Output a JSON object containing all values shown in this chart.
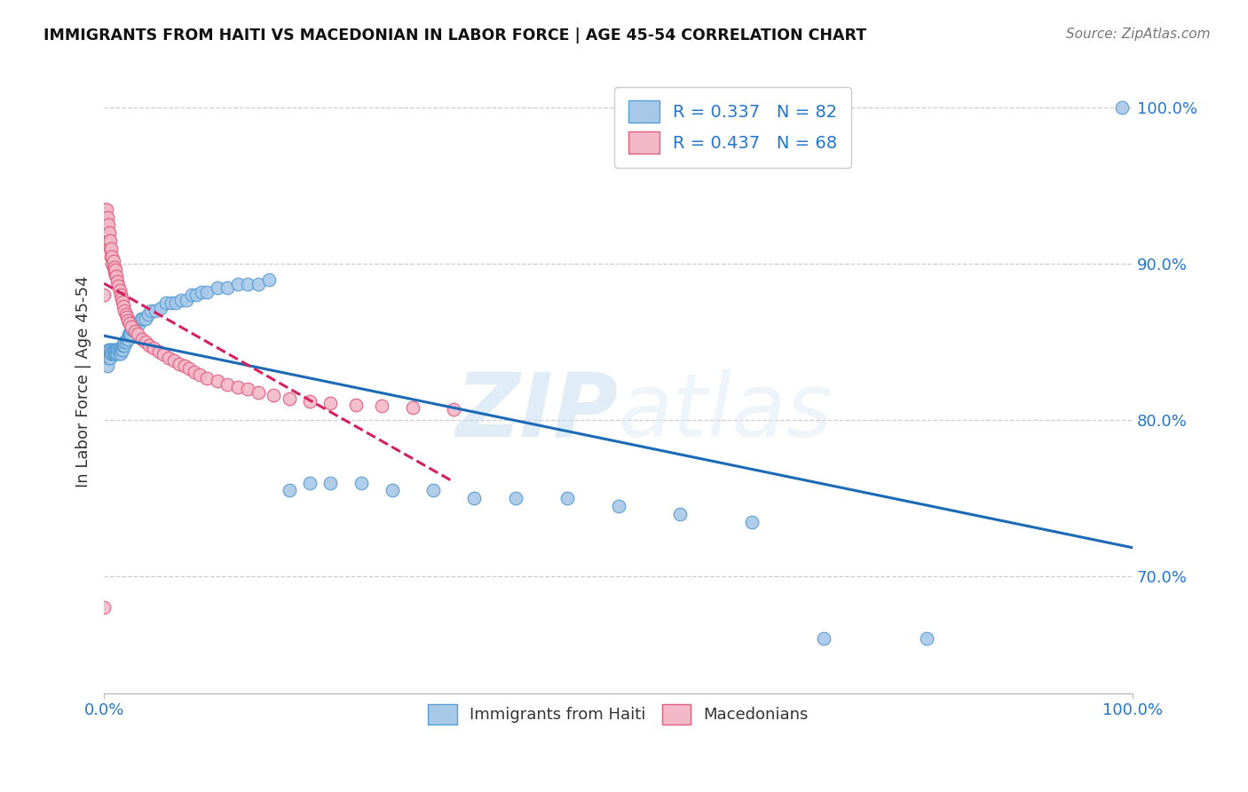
{
  "title": "IMMIGRANTS FROM HAITI VS MACEDONIAN IN LABOR FORCE | AGE 45-54 CORRELATION CHART",
  "source": "Source: ZipAtlas.com",
  "ylabel": "In Labor Force | Age 45-54",
  "xlim": [
    0.0,
    1.0
  ],
  "ylim": [
    0.625,
    1.025
  ],
  "yticks": [
    0.7,
    0.8,
    0.9,
    1.0
  ],
  "ytick_labels": [
    "70.0%",
    "80.0%",
    "90.0%",
    "100.0%"
  ],
  "xtick_labels": [
    "0.0%",
    "100.0%"
  ],
  "legend_text_1": "R = 0.337   N = 82",
  "legend_text_2": "R = 0.437   N = 68",
  "haiti_color": "#a8c8e8",
  "haiti_edge": "#5a9fd4",
  "macedonian_color": "#f4b8c8",
  "macedonian_edge": "#e06080",
  "haiti_line_color": "#1a6ab5",
  "macedonian_line_color": "#d42060",
  "macedonian_line_style": "--",
  "watermark_zip": "ZIP",
  "watermark_atlas": "atlas",
  "haiti_x": [
    0.0,
    0.002,
    0.003,
    0.004,
    0.005,
    0.005,
    0.006,
    0.006,
    0.007,
    0.007,
    0.008,
    0.008,
    0.009,
    0.009,
    0.01,
    0.01,
    0.011,
    0.011,
    0.012,
    0.012,
    0.013,
    0.013,
    0.014,
    0.015,
    0.015,
    0.016,
    0.016,
    0.017,
    0.018,
    0.018,
    0.019,
    0.02,
    0.02,
    0.021,
    0.022,
    0.023,
    0.024,
    0.025,
    0.026,
    0.027,
    0.028,
    0.029,
    0.03,
    0.032,
    0.034,
    0.036,
    0.038,
    0.04,
    0.043,
    0.046,
    0.05,
    0.055,
    0.06,
    0.065,
    0.07,
    0.075,
    0.08,
    0.085,
    0.09,
    0.095,
    0.1,
    0.11,
    0.12,
    0.13,
    0.14,
    0.15,
    0.16,
    0.18,
    0.2,
    0.22,
    0.25,
    0.28,
    0.32,
    0.36,
    0.4,
    0.45,
    0.5,
    0.56,
    0.63,
    0.7,
    0.8,
    0.99
  ],
  "haiti_y": [
    0.84,
    0.84,
    0.835,
    0.845,
    0.84,
    0.845,
    0.84,
    0.845,
    0.843,
    0.843,
    0.845,
    0.843,
    0.843,
    0.845,
    0.843,
    0.845,
    0.843,
    0.845,
    0.845,
    0.843,
    0.845,
    0.843,
    0.845,
    0.845,
    0.843,
    0.845,
    0.843,
    0.845,
    0.845,
    0.848,
    0.848,
    0.848,
    0.85,
    0.85,
    0.852,
    0.852,
    0.855,
    0.855,
    0.855,
    0.858,
    0.858,
    0.86,
    0.86,
    0.862,
    0.862,
    0.865,
    0.865,
    0.865,
    0.868,
    0.87,
    0.87,
    0.872,
    0.875,
    0.875,
    0.875,
    0.877,
    0.877,
    0.88,
    0.88,
    0.882,
    0.882,
    0.885,
    0.885,
    0.887,
    0.887,
    0.887,
    0.89,
    0.755,
    0.76,
    0.76,
    0.76,
    0.755,
    0.755,
    0.75,
    0.75,
    0.75,
    0.745,
    0.74,
    0.735,
    0.66,
    0.66,
    1.0
  ],
  "macedonian_x": [
    0.0,
    0.0,
    0.0,
    0.001,
    0.001,
    0.002,
    0.002,
    0.003,
    0.003,
    0.004,
    0.004,
    0.005,
    0.005,
    0.006,
    0.006,
    0.007,
    0.007,
    0.008,
    0.008,
    0.009,
    0.009,
    0.01,
    0.01,
    0.011,
    0.011,
    0.012,
    0.013,
    0.014,
    0.015,
    0.016,
    0.017,
    0.018,
    0.019,
    0.02,
    0.021,
    0.022,
    0.023,
    0.025,
    0.027,
    0.03,
    0.033,
    0.037,
    0.04,
    0.044,
    0.048,
    0.053,
    0.058,
    0.063,
    0.068,
    0.073,
    0.078,
    0.083,
    0.088,
    0.093,
    0.1,
    0.11,
    0.12,
    0.13,
    0.14,
    0.15,
    0.165,
    0.18,
    0.2,
    0.22,
    0.245,
    0.27,
    0.3,
    0.34
  ],
  "macedonian_y": [
    0.68,
    0.88,
    0.92,
    0.93,
    0.935,
    0.93,
    0.935,
    0.925,
    0.93,
    0.92,
    0.925,
    0.915,
    0.92,
    0.91,
    0.915,
    0.905,
    0.91,
    0.9,
    0.905,
    0.898,
    0.902,
    0.895,
    0.898,
    0.893,
    0.896,
    0.892,
    0.889,
    0.886,
    0.883,
    0.88,
    0.878,
    0.876,
    0.873,
    0.87,
    0.868,
    0.866,
    0.864,
    0.862,
    0.86,
    0.857,
    0.855,
    0.852,
    0.85,
    0.848,
    0.846,
    0.844,
    0.842,
    0.84,
    0.838,
    0.836,
    0.835,
    0.833,
    0.831,
    0.829,
    0.827,
    0.825,
    0.823,
    0.821,
    0.82,
    0.818,
    0.816,
    0.814,
    0.812,
    0.811,
    0.81,
    0.809,
    0.808,
    0.807
  ]
}
